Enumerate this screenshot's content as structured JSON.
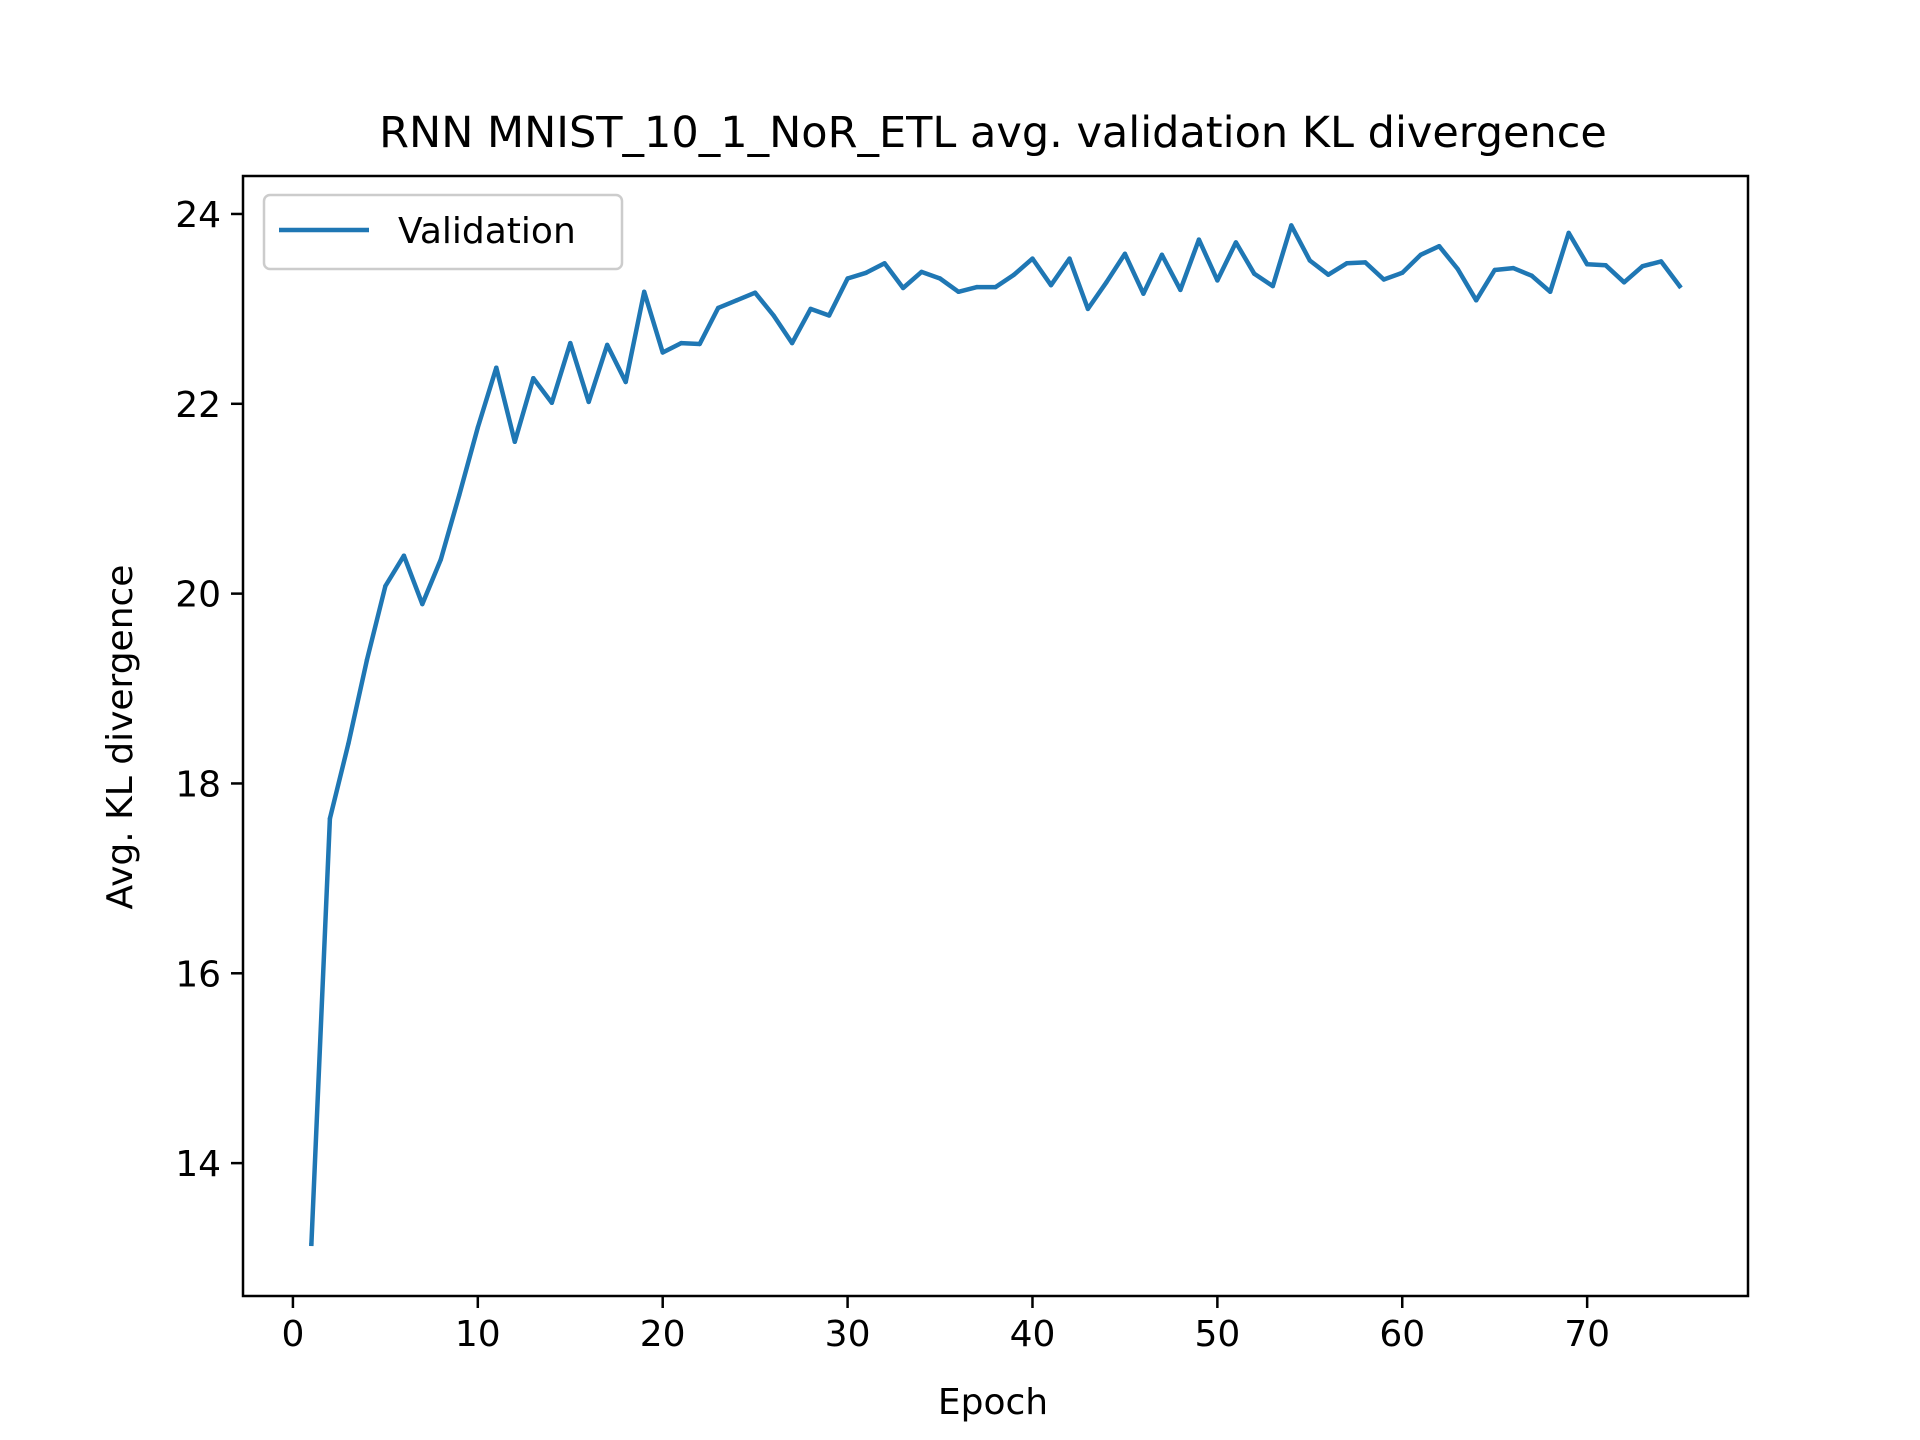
{
  "chart_data": {
    "type": "line",
    "title": "RNN MNIST_10_1_NoR_ETL avg. validation KL divergence",
    "xlabel": "Epoch",
    "ylabel": "Avg. KL divergence",
    "xlim": [
      -2.7,
      78.7
    ],
    "ylim": [
      12.6,
      24.4
    ],
    "xticks": [
      0,
      10,
      20,
      30,
      40,
      50,
      60,
      70
    ],
    "yticks": [
      14,
      16,
      18,
      20,
      22,
      24
    ],
    "xtick_labels": [
      "0",
      "10",
      "20",
      "30",
      "40",
      "50",
      "60",
      "70"
    ],
    "ytick_labels": [
      "14",
      "16",
      "18",
      "20",
      "22",
      "24"
    ],
    "grid": false,
    "legend_position": "upper-left",
    "series": [
      {
        "name": "Validation",
        "color": "#1f77b4",
        "x": [
          1,
          2,
          3,
          4,
          5,
          6,
          7,
          8,
          9,
          10,
          11,
          12,
          13,
          14,
          15,
          16,
          17,
          18,
          19,
          20,
          21,
          22,
          23,
          24,
          25,
          26,
          27,
          28,
          29,
          30,
          31,
          32,
          33,
          34,
          35,
          36,
          37,
          38,
          39,
          40,
          41,
          42,
          43,
          44,
          45,
          46,
          47,
          48,
          49,
          50,
          51,
          52,
          53,
          54,
          55,
          56,
          57,
          58,
          59,
          60,
          61,
          62,
          63,
          64,
          65,
          66,
          67,
          68,
          69,
          70,
          71,
          72,
          73,
          74,
          75
        ],
        "y": [
          13.15,
          17.63,
          18.42,
          19.3,
          20.08,
          20.4,
          19.89,
          20.36,
          21.04,
          21.75,
          22.38,
          21.6,
          22.27,
          22.01,
          22.64,
          22.02,
          22.62,
          22.23,
          23.18,
          22.54,
          22.64,
          22.63,
          23.01,
          23.09,
          23.17,
          22.93,
          22.64,
          23.0,
          22.93,
          23.32,
          23.38,
          23.48,
          23.22,
          23.39,
          23.32,
          23.18,
          23.23,
          23.23,
          23.36,
          23.53,
          23.25,
          23.53,
          23.0,
          23.28,
          23.58,
          23.16,
          23.57,
          23.2,
          23.73,
          23.3,
          23.7,
          23.37,
          23.24,
          23.88,
          23.51,
          23.36,
          23.48,
          23.49,
          23.31,
          23.38,
          23.57,
          23.66,
          23.42,
          23.09,
          23.41,
          23.43,
          23.35,
          23.18,
          23.8,
          23.47,
          23.46,
          23.28,
          23.45,
          23.5,
          23.24
        ]
      }
    ]
  }
}
